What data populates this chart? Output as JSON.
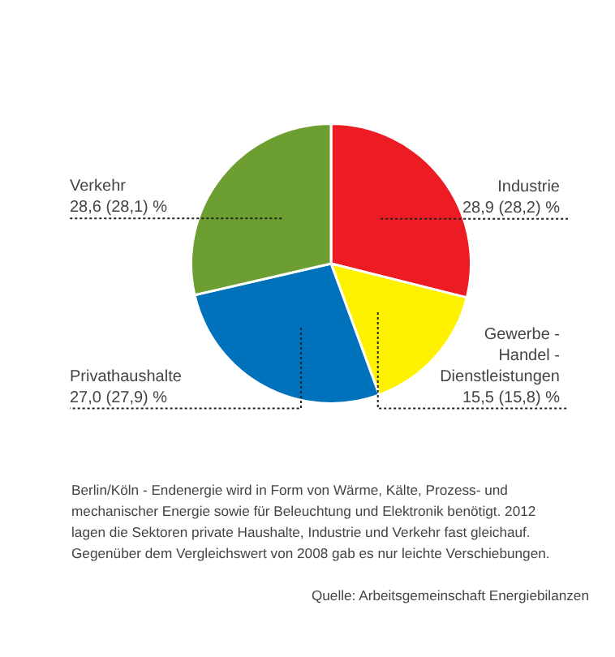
{
  "chart_data": {
    "type": "pie",
    "categories": [
      "Industrie",
      "Gewerbe - Handel - Dienstleistungen",
      "Privathaushalte",
      "Verkehr"
    ],
    "values": [
      28.9,
      15.5,
      27.0,
      28.6
    ],
    "value_labels": [
      "28,9 (28,2) %",
      "15,5 (15,8) %",
      "27,0 (27,9) %",
      "28,6 (28,1) %"
    ],
    "colors": [
      "#ed1c24",
      "#fff200",
      "#0072bc",
      "#6d9e31"
    ],
    "legend": false,
    "annotations": [
      "Berlin/Köln - Endenergie wird in Form von Wärme, Kälte, Prozess- und mechanischer Energie sowie für Beleuchtung und Elektronik benötigt. 2012 lagen die Sektoren private Haushalte, Industrie und Verkehr fast gleichauf. Gegenüber dem Vergleichswert von 2008 gab es nur leichte Verschiebungen.",
      "Quelle: Arbeitsgemeinschaft Energiebilanzen"
    ]
  }
}
